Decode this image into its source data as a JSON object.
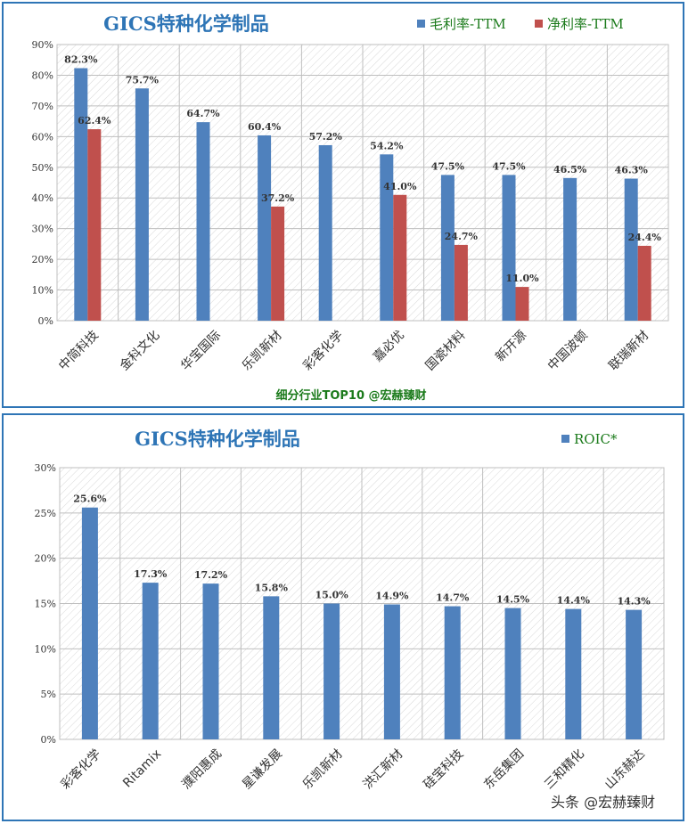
{
  "colors": {
    "blue": "#4f81bd",
    "red": "#c0504d",
    "title": "#2e75b6",
    "legend": "#1a7a1a",
    "footer": "#1a7a1a"
  },
  "chart_data": [
    {
      "type": "bar",
      "title": "GICS特种化学制品",
      "categories": [
        "中简科技",
        "金科文化",
        "华宝国际",
        "乐凯新材",
        "彩客化学",
        "嘉必优",
        "国瓷材料",
        "新开源",
        "中国波顿",
        "联瑞新材"
      ],
      "series": [
        {
          "name": "毛利率-TTM",
          "color": "#4f81bd",
          "values": [
            82.3,
            75.7,
            64.7,
            60.4,
            57.2,
            54.2,
            47.5,
            47.5,
            46.5,
            46.3
          ],
          "labels": [
            "82.3%",
            "75.7%",
            "64.7%",
            "60.4%",
            "57.2%",
            "54.2%",
            "47.5%",
            "47.5%",
            "46.5%",
            "46.3%"
          ]
        },
        {
          "name": "净利率-TTM",
          "color": "#c0504d",
          "values": [
            62.4,
            null,
            null,
            37.2,
            null,
            41.0,
            24.7,
            11.0,
            null,
            24.4
          ],
          "labels": [
            "62.4%",
            "",
            "",
            "37.2%",
            "",
            "41.0%",
            "24.7%",
            "11.0%",
            "",
            "24.4%"
          ]
        }
      ],
      "ylim": [
        0,
        90
      ],
      "yticks": [
        "0%",
        "10%",
        "20%",
        "30%",
        "40%",
        "50%",
        "60%",
        "70%",
        "80%",
        "90%"
      ],
      "grid": true,
      "legend": "top-right",
      "footer": "细分行业TOP10 @宏赫臻财"
    },
    {
      "type": "bar",
      "title": "GICS特种化学制品",
      "categories": [
        "彩客化学",
        "Ritamix",
        "濮阳惠成",
        "星谦发展",
        "乐凯新材",
        "洪汇新材",
        "硅宝科技",
        "东岳集团",
        "三和精化",
        "山东赫达"
      ],
      "series": [
        {
          "name": "ROIC*",
          "color": "#4f81bd",
          "values": [
            25.6,
            17.3,
            17.2,
            15.8,
            15.0,
            14.9,
            14.7,
            14.5,
            14.4,
            14.3
          ],
          "labels": [
            "25.6%",
            "17.3%",
            "17.2%",
            "15.8%",
            "15.0%",
            "14.9%",
            "14.7%",
            "14.5%",
            "14.4%",
            "14.3%"
          ]
        }
      ],
      "ylim": [
        0,
        30
      ],
      "yticks": [
        "0%",
        "5%",
        "10%",
        "15%",
        "20%",
        "25%",
        "30%"
      ],
      "grid": true,
      "legend": "top-right"
    }
  ],
  "watermark": "头条 @宏赫臻财"
}
